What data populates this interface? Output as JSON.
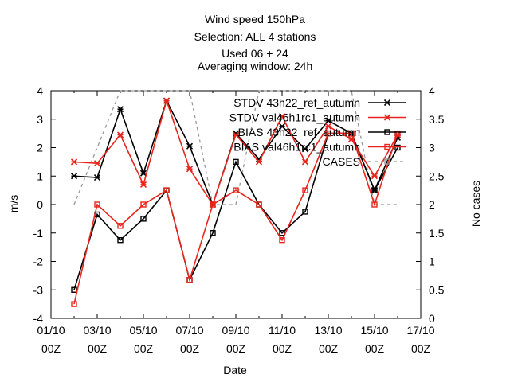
{
  "chart_data": {
    "type": "line",
    "title_lines": [
      "Wind speed 150hPa",
      "Selection: ALL       4 stations",
      "Used  06  + 24",
      "Averaging window: 24h"
    ],
    "xlabel": "Date",
    "ylabel": "m/s",
    "y2label": "No cases",
    "xlim": [
      0,
      16
    ],
    "ylim": [
      -4,
      4
    ],
    "y2lim": [
      0,
      4
    ],
    "x_tick_labels": [
      {
        "x": 0,
        "line1": "01/10",
        "line2": "00Z"
      },
      {
        "x": 2,
        "line1": "03/10",
        "line2": "00Z"
      },
      {
        "x": 4,
        "line1": "05/10",
        "line2": "00Z"
      },
      {
        "x": 6,
        "line1": "07/10",
        "line2": "00Z"
      },
      {
        "x": 8,
        "line1": "09/10",
        "line2": "00Z"
      },
      {
        "x": 10,
        "line1": "11/10",
        "line2": "00Z"
      },
      {
        "x": 12,
        "line1": "13/10",
        "line2": "00Z"
      },
      {
        "x": 14,
        "line1": "15/10",
        "line2": "00Z"
      },
      {
        "x": 16,
        "line1": "17/10",
        "line2": "00Z"
      }
    ],
    "y_ticks": [
      "-4",
      "-3",
      "-2",
      "-1",
      "0",
      "1",
      "2",
      "3",
      "4"
    ],
    "y2_ticks": [
      "0",
      "0.5",
      "1",
      "1.5",
      "2",
      "2.5",
      "3",
      "3.5",
      "4"
    ],
    "x": [
      1,
      2,
      3,
      4,
      5,
      6,
      7,
      8,
      9,
      10,
      11,
      12,
      13,
      14,
      15
    ],
    "series": [
      {
        "name": "STDV 43h22_ref_autumn",
        "color": "#000000",
        "marker": "star",
        "axis": "y1",
        "values": [
          1.0,
          0.95,
          3.35,
          1.1,
          3.65,
          2.05,
          0.0,
          2.5,
          1.6,
          2.75,
          1.95,
          2.95,
          2.5,
          0.5,
          2.35
        ]
      },
      {
        "name": "STDV val46h1rc1_autumn",
        "color": "#e8251c",
        "marker": "star",
        "axis": "y1",
        "values": [
          1.5,
          1.45,
          2.45,
          0.7,
          3.65,
          1.25,
          0.0,
          2.45,
          1.5,
          3.1,
          1.5,
          2.75,
          2.3,
          1.0,
          2.45
        ]
      },
      {
        "name": "BIAS 43h22_ref_autumn",
        "color": "#000000",
        "marker": "square",
        "axis": "y1",
        "values": [
          -3.0,
          -0.35,
          -1.25,
          -0.5,
          0.5,
          -2.65,
          -1.0,
          1.5,
          0.0,
          -1.0,
          -0.25,
          2.5,
          2.5,
          0.5,
          2.0
        ]
      },
      {
        "name": "BIAS val46h1rc1_autumn",
        "color": "#e8251c",
        "marker": "square",
        "axis": "y1",
        "values": [
          -3.5,
          0.0,
          -0.75,
          0.0,
          0.5,
          -2.65,
          0.0,
          0.5,
          0.0,
          -1.25,
          0.5,
          2.5,
          2.5,
          0.0,
          2.5
        ]
      },
      {
        "name": "CASES",
        "color": "#999999",
        "marker": "square",
        "axis": "y2",
        "dashed": true,
        "values": [
          2.0,
          3.0,
          4.0,
          4.0,
          4.0,
          4.0,
          2.0,
          2.0,
          4.0,
          4.0,
          4.0,
          4.0,
          4.0,
          2.0,
          2.0
        ]
      }
    ],
    "legend": {
      "position": "top-right"
    },
    "grid": false
  }
}
